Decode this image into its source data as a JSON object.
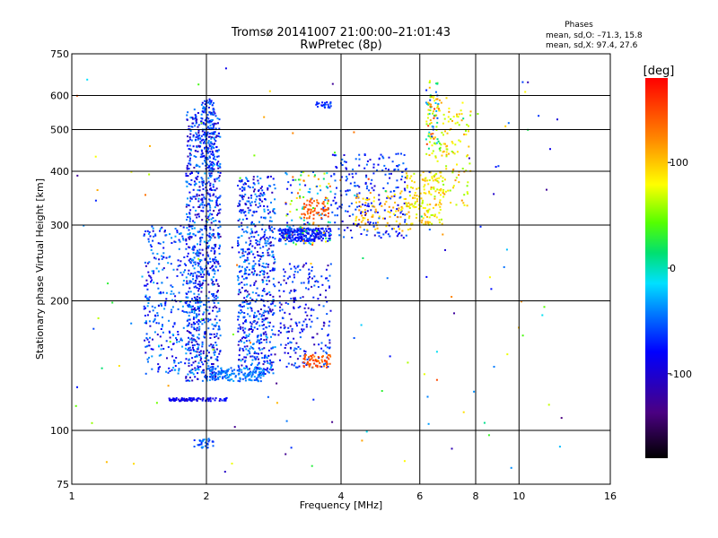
{
  "chart_data": {
    "type": "scatter",
    "title": "Tromsø 20141007 21:00:00–21:01:43",
    "subtitle": "RwPretec (8p)",
    "xlabel": "Frequency [MHz]",
    "ylabel": "Stationary phase Virtual Height [km]",
    "x_scale": "log",
    "y_scale": "log",
    "xlim": [
      1,
      16
    ],
    "ylim": [
      75,
      750
    ],
    "x_ticks": [
      1,
      2,
      4,
      6,
      8,
      10,
      16
    ],
    "y_ticks": [
      75,
      100,
      200,
      300,
      400,
      500,
      600,
      750
    ],
    "x_grid": [
      2,
      4,
      6,
      8,
      10
    ],
    "y_grid": [
      100,
      200,
      300,
      400,
      500,
      600
    ],
    "grid": true,
    "phases_box": {
      "heading": "Phases",
      "line_o": "mean, sd,O: –71.3, 15.8",
      "line_x": "mean, sd,X:  97.4, 27.6"
    },
    "colorbar": {
      "label": "[deg]",
      "range": [
        -180,
        180
      ],
      "ticks": [
        {
          "value": 100,
          "label": "100"
        },
        {
          "value": 0,
          "label": "0"
        },
        {
          "value": -100,
          "label": "-100"
        }
      ]
    },
    "clusters": [
      {
        "x": [
          1.8,
          2.15
        ],
        "y": [
          130,
          560
        ],
        "n": 900,
        "phase": [
          -130,
          -40
        ]
      },
      {
        "x": [
          1.95,
          2.08
        ],
        "y": [
          400,
          590
        ],
        "n": 120,
        "phase": [
          -110,
          -50
        ]
      },
      {
        "x": [
          2.35,
          2.85
        ],
        "y": [
          135,
          390
        ],
        "n": 650,
        "phase": [
          -130,
          -40
        ]
      },
      {
        "x": [
          1.45,
          1.95
        ],
        "y": [
          135,
          300
        ],
        "n": 350,
        "phase": [
          -120,
          -40
        ]
      },
      {
        "x": [
          2.0,
          2.7
        ],
        "y": [
          130,
          140
        ],
        "n": 150,
        "phase": [
          -80,
          -40
        ]
      },
      {
        "x": [
          1.65,
          2.25
        ],
        "y": [
          117,
          119
        ],
        "n": 90,
        "phase": [
          -120,
          -90
        ]
      },
      {
        "x": [
          2.9,
          3.8
        ],
        "y": [
          275,
          295
        ],
        "n": 280,
        "phase": [
          -120,
          -70
        ]
      },
      {
        "x": [
          3.8,
          5.6
        ],
        "y": [
          280,
          440
        ],
        "n": 220,
        "phase": [
          -120,
          -60
        ]
      },
      {
        "x": [
          3.0,
          3.8
        ],
        "y": [
          270,
          400
        ],
        "n": 130,
        "phase": [
          -110,
          150
        ]
      },
      {
        "x": [
          3.3,
          3.75
        ],
        "y": [
          310,
          345
        ],
        "n": 60,
        "phase": [
          120,
          160
        ]
      },
      {
        "x": [
          4.3,
          5.8
        ],
        "y": [
          290,
          360
        ],
        "n": 90,
        "phase": [
          80,
          120
        ]
      },
      {
        "x": [
          5.6,
          6.8
        ],
        "y": [
          300,
          400
        ],
        "n": 140,
        "phase": [
          60,
          110
        ]
      },
      {
        "x": [
          6.2,
          7.8
        ],
        "y": [
          330,
          600
        ],
        "n": 150,
        "phase": [
          50,
          120
        ]
      },
      {
        "x": [
          6.2,
          6.7
        ],
        "y": [
          450,
          650
        ],
        "n": 60,
        "phase": [
          -100,
          160
        ]
      },
      {
        "x": [
          2.9,
          3.8
        ],
        "y": [
          140,
          245
        ],
        "n": 220,
        "phase": [
          -130,
          -60
        ]
      },
      {
        "x": [
          3.3,
          3.8
        ],
        "y": [
          140,
          150
        ],
        "n": 60,
        "phase": [
          120,
          160
        ]
      },
      {
        "x": [
          3.5,
          3.8
        ],
        "y": [
          560,
          580
        ],
        "n": 25,
        "phase": [
          -100,
          -60
        ]
      },
      {
        "x": [
          1.85,
          2.1
        ],
        "y": [
          91,
          96
        ],
        "n": 30,
        "phase": [
          -90,
          -40
        ]
      },
      {
        "x": [
          1.0,
          13
        ],
        "y": [
          80,
          700
        ],
        "n": 140,
        "phase": [
          -140,
          160
        ]
      }
    ]
  }
}
